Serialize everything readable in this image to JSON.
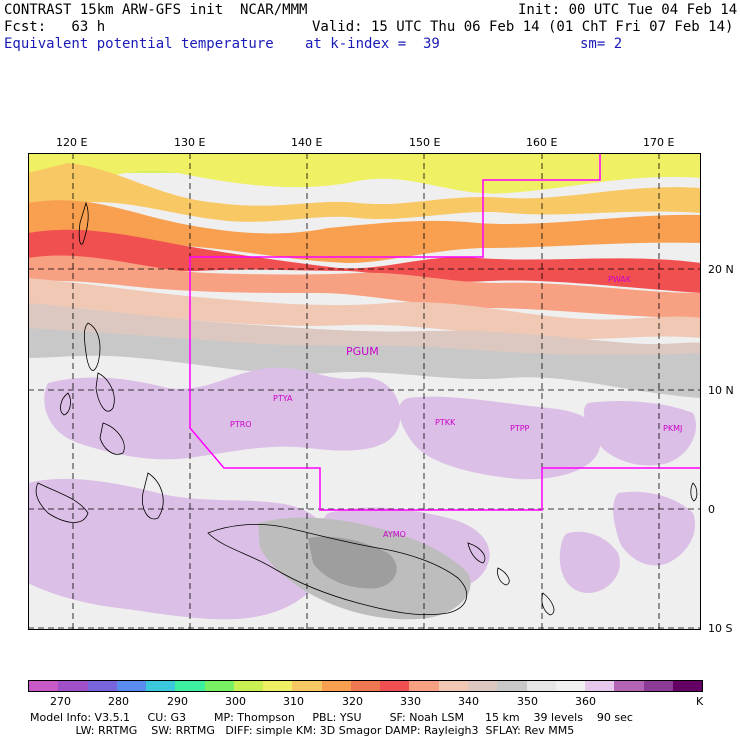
{
  "header": {
    "title": "CONTRAST 15km ARW-GFS init  NCAR/MMM",
    "init": "Init: 00 UTC Tue 04 Feb 14",
    "fcst": "Fcst:   63 h",
    "valid": "Valid: 15 UTC Thu 06 Feb 14 (01 ChT Fri 07 Feb 14)",
    "field": "Equivalent potential temperature",
    "level": "at k-index =  39",
    "smooth": "sm= 2"
  },
  "axes": {
    "lon_labels": [
      "120 E",
      "130 E",
      "140 E",
      "150 E",
      "160 E",
      "170 E"
    ],
    "lat_labels": [
      "20 N",
      "10 N",
      "0",
      "10 S"
    ]
  },
  "stations": [
    "PWAK",
    "PGUM",
    "PTYA",
    "PTRO",
    "PTKK",
    "PTPP",
    "PKMJ",
    "AYMO"
  ],
  "colorbar": {
    "colors": [
      "#c85ac8",
      "#a050c8",
      "#7864dc",
      "#5a8cf0",
      "#3cc8dc",
      "#3cf0a0",
      "#78f064",
      "#c8f050",
      "#f0f064",
      "#f8c864",
      "#f8a050",
      "#f07850",
      "#f05050",
      "#f8a082",
      "#f0c8b4",
      "#dcc8c0",
      "#c8c8c8",
      "#e6e6e6",
      "#f0f0f0",
      "#e6c8ec",
      "#b464b4",
      "#8c3c96",
      "#640064"
    ],
    "labels": [
      "270",
      "280",
      "290",
      "300",
      "310",
      "320",
      "330",
      "340",
      "350",
      "360",
      "K"
    ]
  },
  "footer": {
    "line1": "Model Info: V3.5.1     CU: G3        MP: Thompson     PBL: YSU        SF: Noah LSM      15 km    39 levels    90 sec",
    "line2": "             LW: RRTMG    SW: RRTMG   DIFF: simple KM: 3D Smagor DAMP: Rayleigh3  SFLAY: Rev MM5"
  }
}
